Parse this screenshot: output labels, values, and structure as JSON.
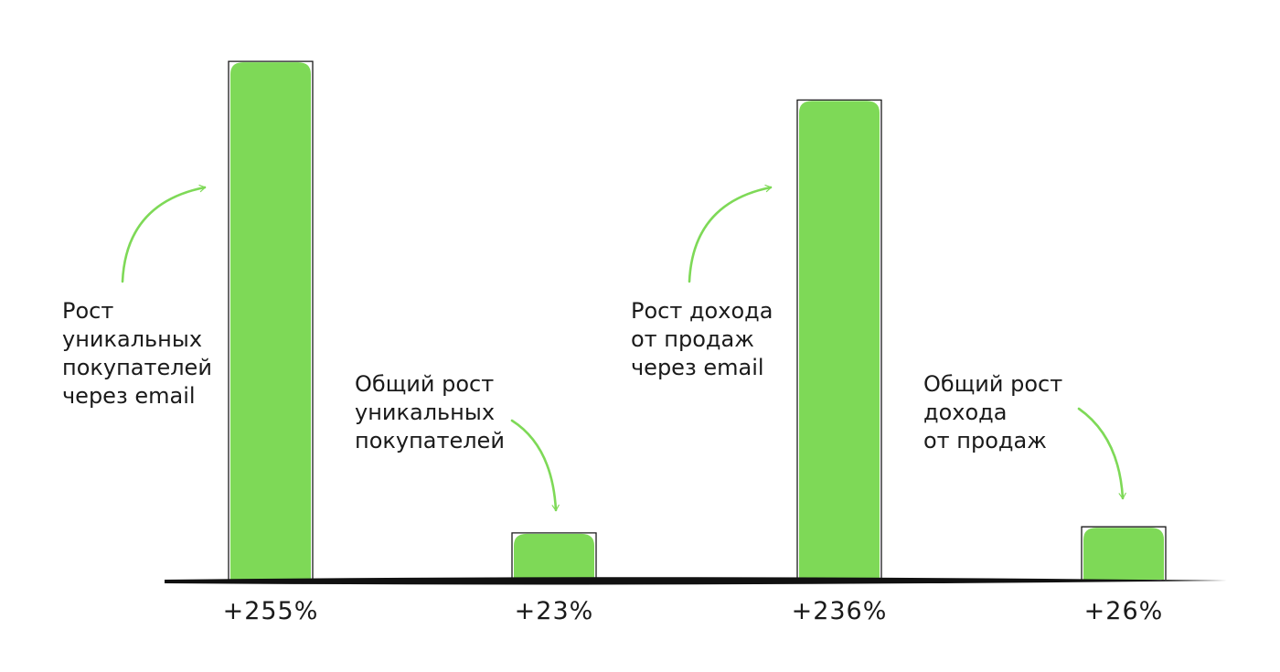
{
  "chart_data": {
    "type": "bar",
    "title": "",
    "xlabel": "",
    "ylabel": "",
    "ylim": [
      0,
      260
    ],
    "grid": false,
    "categories": [
      "Рост уникальных покупателей через email",
      "Общий рост уникальных покупателей",
      "Рост дохода от продаж через email",
      "Общий рост дохода от продаж"
    ],
    "values": [
      255,
      23,
      236,
      26
    ],
    "value_labels": [
      "+255%",
      "+23%",
      "+236%",
      "+26%"
    ],
    "annotations": [
      [
        "Рост",
        "уникальных",
        "покупателей",
        "через email"
      ],
      [
        "Общий рост",
        "уникальных",
        "покупателей"
      ],
      [
        "Рост дохода",
        "от продаж",
        "через email"
      ],
      [
        "Общий рост",
        "дохода",
        "от продаж"
      ]
    ],
    "colors": {
      "bar": "#7ed957",
      "arrow": "#7ed957",
      "outline": "#1a1a1a"
    }
  }
}
